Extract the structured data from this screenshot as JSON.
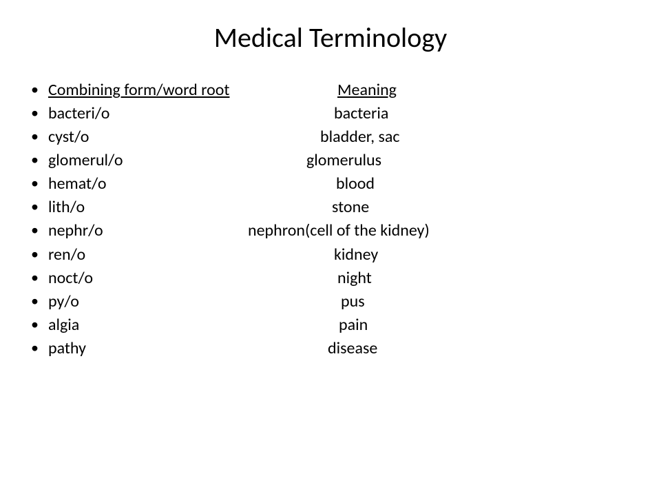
{
  "title": "Medical Terminology",
  "header": {
    "term_label": "Combining form/word root",
    "meaning_label": "Meaning"
  },
  "rows": [
    {
      "term": "bacteri/o",
      "meaning": "bacteria"
    },
    {
      "term": "cyst/o",
      "meaning": "bladder, sac"
    },
    {
      "term": "glomerul/o",
      "meaning": "glomerulus"
    },
    {
      "term": "hemat/o",
      "meaning": "blood"
    },
    {
      "term": "lith/o",
      "meaning": "stone"
    },
    {
      "term": "nephr/o",
      "meaning": "nephron(cell of the kidney)"
    },
    {
      "term": "ren/o",
      "meaning": "kidney"
    },
    {
      "term": "noct/o",
      "meaning": "night"
    },
    {
      "term": "py/o",
      "meaning": "pus"
    },
    {
      "term": "algia",
      "meaning": "pain"
    },
    {
      "term": "pathy",
      "meaning": "disease"
    }
  ],
  "styling": {
    "background_color": "#ffffff",
    "text_color": "#000000",
    "title_fontsize": 40,
    "body_fontsize": 24,
    "font_family": "Calibri",
    "bullet_color": "#000000",
    "underline_header": true
  }
}
